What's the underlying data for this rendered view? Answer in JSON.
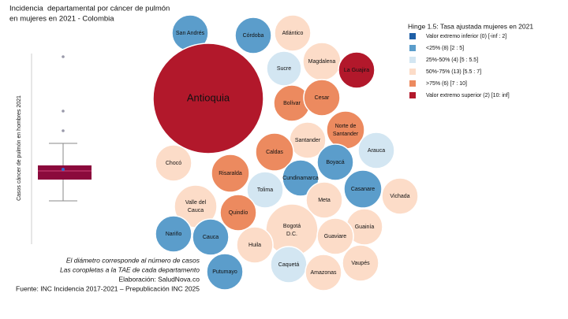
{
  "header": {
    "title": [
      "Incidencia  departamental por cáncer de pulmón",
      "en mujeres en 2021 - Colombia"
    ]
  },
  "boxplot": {
    "y_label": "Casos cáncer de pulmón en hombres 2021"
  },
  "legend": {
    "title": "Hinge 1.5: Tasa ajustada mujeres en 2021",
    "items": [
      {
        "label": "Valor extremo inferior (0) [-inf : 2]",
        "color": "#1f5fa6"
      },
      {
        "label": "<25% (8) [2 : 5]",
        "color": "#5b9dcb"
      },
      {
        "label": "25%-50% (4) [5 : 5.5]",
        "color": "#d3e6f2"
      },
      {
        "label": "50%-75% (13) [5.5 : 7]",
        "color": "#fcdcc8"
      },
      {
        "label": ">75% (6) [7 : 10]",
        "color": "#ec8a5f"
      },
      {
        "label": "Valor extremo superior (2) [10: inf]",
        "color": "#b2182b"
      }
    ]
  },
  "nodes": [
    {
      "label": [
        "San Andrés"
      ],
      "group": 1
    },
    {
      "label": [
        "Córdoba"
      ],
      "group": 1
    },
    {
      "label": [
        "Atlántico"
      ],
      "group": 3
    },
    {
      "label": [
        "Sucre"
      ],
      "group": 2
    },
    {
      "label": [
        "Magdalena"
      ],
      "group": 3
    },
    {
      "label": [
        "La Guajira"
      ],
      "group": 5
    },
    {
      "label": [
        "Antioquia"
      ],
      "group": 5
    },
    {
      "label": [
        "Bolívar"
      ],
      "group": 4
    },
    {
      "label": [
        "Cesar"
      ],
      "group": 4
    },
    {
      "label": [
        "Norte de",
        "Santander"
      ],
      "group": 4
    },
    {
      "label": [
        "Santander"
      ],
      "group": 3
    },
    {
      "label": [
        "Arauca"
      ],
      "group": 2
    },
    {
      "label": [
        "Caldas"
      ],
      "group": 4
    },
    {
      "label": [
        "Boyacá"
      ],
      "group": 1
    },
    {
      "label": [
        "Chocó"
      ],
      "group": 3
    },
    {
      "label": [
        "Risaralda"
      ],
      "group": 4
    },
    {
      "label": [
        "Cundinamarca"
      ],
      "group": 1
    },
    {
      "label": [
        "Tolima"
      ],
      "group": 2
    },
    {
      "label": [
        "Casanare"
      ],
      "group": 1
    },
    {
      "label": [
        "Vichada"
      ],
      "group": 3
    },
    {
      "label": [
        "Valle del",
        "Cauca"
      ],
      "group": 3
    },
    {
      "label": [
        "Meta"
      ],
      "group": 3
    },
    {
      "label": [
        "Quindío"
      ],
      "group": 4
    },
    {
      "label": [
        "Bogotá",
        "D.C."
      ],
      "group": 3
    },
    {
      "label": [
        "Guainía"
      ],
      "group": 3
    },
    {
      "label": [
        "Nariño"
      ],
      "group": 1
    },
    {
      "label": [
        "Cauca"
      ],
      "group": 1
    },
    {
      "label": [
        "Huila"
      ],
      "group": 3
    },
    {
      "label": [
        "Guaviare"
      ],
      "group": 3
    },
    {
      "label": [
        "Caquetá"
      ],
      "group": 2
    },
    {
      "label": [
        "Amazonas"
      ],
      "group": 3
    },
    {
      "label": [
        "Vaupés"
      ],
      "group": 3
    },
    {
      "label": [
        "Putumayo"
      ],
      "group": 1
    }
  ],
  "notes": [
    "El diámetro corresponde al número de casos",
    "Las coropletas a la TAE de cada departamento",
    "Elaboración: SaludNova.co"
  ],
  "source": "Fuente: INC Incidencia 2017-2021 – Prepublicación INC 2025"
}
